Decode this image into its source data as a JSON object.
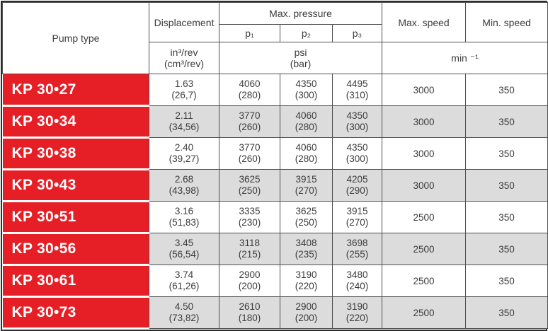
{
  "colors": {
    "accent": "#e61e25",
    "row_alt": "#dcdcdc",
    "line": "#4f4f4f",
    "frame": "#2e2e2e",
    "text": "#3c3c3c",
    "pump_text": "#ffffff"
  },
  "table": {
    "header": {
      "pump_type": "Pump type",
      "displacement": "Displacement",
      "max_pressure": "Max. pressure",
      "max_speed": "Max. speed",
      "min_speed": "Min. speed",
      "p1": "p₁",
      "p2": "p₂",
      "p3": "p₃",
      "displacement_unit_in": "in³/rev",
      "displacement_unit_cm": "(cm³/rev)",
      "pressure_unit_psi": "psi",
      "pressure_unit_bar": "(bar)",
      "speed_unit": "min ⁻¹"
    },
    "rows": [
      {
        "pump_type": "KP 30•27",
        "displacement": {
          "in": "1.63",
          "cm": "(26,7)"
        },
        "p1": {
          "psi": "4060",
          "bar": "(280)"
        },
        "p2": {
          "psi": "4350",
          "bar": "(300)"
        },
        "p3": {
          "psi": "4495",
          "bar": "(310)"
        },
        "max_speed": "3000",
        "min_speed": "350"
      },
      {
        "pump_type": "KP 30•34",
        "displacement": {
          "in": "2.11",
          "cm": "(34,56)"
        },
        "p1": {
          "psi": "3770",
          "bar": "(260)"
        },
        "p2": {
          "psi": "4060",
          "bar": "(280)"
        },
        "p3": {
          "psi": "4350",
          "bar": "(300)"
        },
        "max_speed": "3000",
        "min_speed": "350"
      },
      {
        "pump_type": "KP 30•38",
        "displacement": {
          "in": "2.40",
          "cm": "(39,27)"
        },
        "p1": {
          "psi": "3770",
          "bar": "(260)"
        },
        "p2": {
          "psi": "4060",
          "bar": "(280)"
        },
        "p3": {
          "psi": "4350",
          "bar": "(300)"
        },
        "max_speed": "3000",
        "min_speed": "350"
      },
      {
        "pump_type": "KP 30•43",
        "displacement": {
          "in": "2.68",
          "cm": "(43,98)"
        },
        "p1": {
          "psi": "3625",
          "bar": "(250)"
        },
        "p2": {
          "psi": "3915",
          "bar": "(270)"
        },
        "p3": {
          "psi": "4205",
          "bar": "(290)"
        },
        "max_speed": "3000",
        "min_speed": "350"
      },
      {
        "pump_type": "KP 30•51",
        "displacement": {
          "in": "3.16",
          "cm": "(51,83)"
        },
        "p1": {
          "psi": "3335",
          "bar": "(230)"
        },
        "p2": {
          "psi": "3625",
          "bar": "(250)"
        },
        "p3": {
          "psi": "3915",
          "bar": "(270)"
        },
        "max_speed": "2500",
        "min_speed": "350"
      },
      {
        "pump_type": "KP 30•56",
        "displacement": {
          "in": "3.45",
          "cm": "(56,54)"
        },
        "p1": {
          "psi": "3118",
          "bar": "(215)"
        },
        "p2": {
          "psi": "3408",
          "bar": "(235)"
        },
        "p3": {
          "psi": "3698",
          "bar": "(255)"
        },
        "max_speed": "2500",
        "min_speed": "350"
      },
      {
        "pump_type": "KP 30•61",
        "displacement": {
          "in": "3.74",
          "cm": "(61,26)"
        },
        "p1": {
          "psi": "2900",
          "bar": "(200)"
        },
        "p2": {
          "psi": "3190",
          "bar": "(220)"
        },
        "p3": {
          "psi": "3480",
          "bar": "(240)"
        },
        "max_speed": "2500",
        "min_speed": "350"
      },
      {
        "pump_type": "KP 30•73",
        "displacement": {
          "in": "4.50",
          "cm": "(73,82)"
        },
        "p1": {
          "psi": "2610",
          "bar": "(180)"
        },
        "p2": {
          "psi": "2900",
          "bar": "(200)"
        },
        "p3": {
          "psi": "3190",
          "bar": "(220)"
        },
        "max_speed": "2500",
        "min_speed": "350"
      }
    ]
  }
}
